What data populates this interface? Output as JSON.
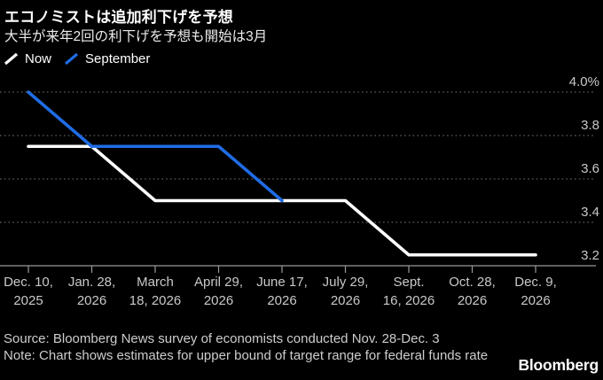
{
  "header": {
    "title": "エコノミストは追加利下げを予想",
    "subtitle": "大半が来年2回の利下げを予想も開始は3月"
  },
  "colors": {
    "background": "#000000",
    "now_line": "#ffffff",
    "september_line": "#1f6ce6",
    "gridline": "#4f4f4f",
    "axis": "#999999",
    "axis_text": "#c9c9c9"
  },
  "chart_data": {
    "type": "line",
    "title": "エコノミストは追加利下げを予想",
    "xlabel": "",
    "ylabel": "",
    "unit": "%",
    "categories": [
      [
        "Dec. 10,",
        "2025"
      ],
      [
        "Jan. 28,",
        "2026"
      ],
      [
        "March",
        "18, 2026"
      ],
      [
        "April 29,",
        "2026"
      ],
      [
        "June 17,",
        "2026"
      ],
      [
        "July 29,",
        "2026"
      ],
      [
        "Sept.",
        "16, 2026"
      ],
      [
        "Oct. 28,",
        "2026"
      ],
      [
        "Dec. 9,",
        "2026"
      ]
    ],
    "series": [
      {
        "name": "Now",
        "color": "#ffffff",
        "values": [
          3.75,
          3.75,
          3.5,
          3.5,
          3.5,
          3.5,
          3.25,
          3.25,
          3.25
        ]
      },
      {
        "name": "September",
        "color": "#1f6ce6",
        "values": [
          4.0,
          3.75,
          3.75,
          3.75,
          3.5,
          null,
          null,
          null,
          null
        ]
      }
    ],
    "yticks": {
      "labels": [
        "4.0%",
        "3.8",
        "3.6",
        "3.4",
        "3.2"
      ],
      "values": [
        4.0,
        3.8,
        3.6,
        3.4,
        3.2
      ]
    },
    "ylim": [
      3.2,
      4.0
    ],
    "grid": "horizontal-dotted",
    "legend_position": "top-left"
  },
  "footer": {
    "source": "Source: Bloomberg News survey of economists conducted Nov. 28-Dec. 3",
    "note": "Note: Chart shows estimates for upper bound of target range for federal funds rate",
    "brand": "Bloomberg"
  }
}
